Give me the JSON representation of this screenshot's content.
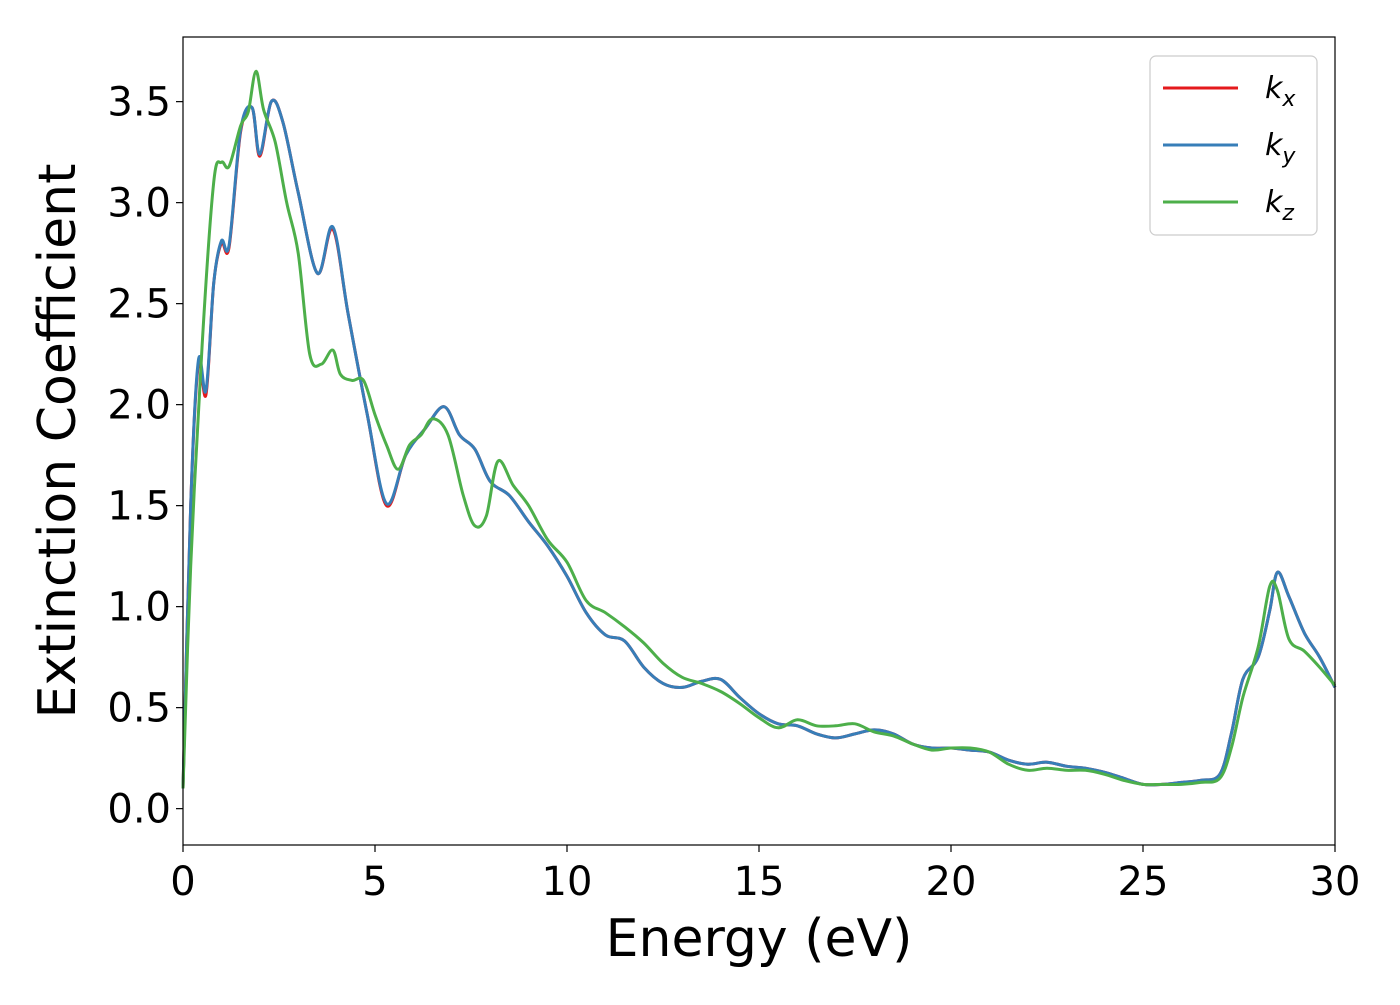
{
  "chart_data": {
    "type": "line",
    "xlabel": "Energy (eV)",
    "ylabel": "Extinction Coefficient",
    "xlim": [
      0,
      30
    ],
    "ylim": [
      -0.18,
      3.82
    ],
    "xticks": [
      0,
      5,
      10,
      15,
      20,
      25,
      30
    ],
    "yticks": [
      "0.0",
      "0.5",
      "1.0",
      "1.5",
      "2.0",
      "2.5",
      "3.0",
      "3.5"
    ],
    "grid": false,
    "legend_position": "top-right",
    "legend": [
      {
        "label": "k",
        "sub": "x",
        "color": "#e41a1c"
      },
      {
        "label": "k",
        "sub": "y",
        "color": "#377eb8"
      },
      {
        "label": "k",
        "sub": "z",
        "color": "#4daf4a"
      }
    ],
    "series": [
      {
        "name": "kx",
        "color": "#e41a1c",
        "x": [
          0,
          0.2,
          0.4,
          0.6,
          0.8,
          1.0,
          1.2,
          1.5,
          1.8,
          2.0,
          2.3,
          2.6,
          3.0,
          3.5,
          3.9,
          4.3,
          4.8,
          5.3,
          5.8,
          6.3,
          6.8,
          7.2,
          7.6,
          8.0,
          8.5,
          9.0,
          9.5,
          10.0,
          10.5,
          11.0,
          11.5,
          12.0,
          12.5,
          13.0,
          13.5,
          14.0,
          14.5,
          15.0,
          15.5,
          16.0,
          16.5,
          17.0,
          17.5,
          18.0,
          18.5,
          19.0,
          19.5,
          20.0,
          20.5,
          21.0,
          21.5,
          22.0,
          22.5,
          23.0,
          23.5,
          24.0,
          24.5,
          25.0,
          25.5,
          26.0,
          26.5,
          27.0,
          27.3,
          27.6,
          28.0,
          28.3,
          28.5,
          28.8,
          29.2,
          29.6,
          30.0
        ],
        "y": [
          0.1,
          1.5,
          2.2,
          2.05,
          2.6,
          2.8,
          2.78,
          3.35,
          3.47,
          3.23,
          3.5,
          3.4,
          3.05,
          2.65,
          2.87,
          2.45,
          1.95,
          1.5,
          1.75,
          1.88,
          1.99,
          1.85,
          1.78,
          1.62,
          1.55,
          1.42,
          1.3,
          1.15,
          0.97,
          0.86,
          0.83,
          0.7,
          0.62,
          0.6,
          0.63,
          0.64,
          0.55,
          0.47,
          0.42,
          0.41,
          0.37,
          0.35,
          0.37,
          0.39,
          0.37,
          0.32,
          0.3,
          0.3,
          0.29,
          0.28,
          0.24,
          0.22,
          0.23,
          0.21,
          0.2,
          0.18,
          0.15,
          0.12,
          0.12,
          0.13,
          0.14,
          0.17,
          0.37,
          0.64,
          0.75,
          0.98,
          1.17,
          1.05,
          0.87,
          0.75,
          0.6
        ]
      },
      {
        "name": "ky",
        "color": "#377eb8",
        "x": [
          0,
          0.2,
          0.4,
          0.6,
          0.8,
          1.0,
          1.2,
          1.5,
          1.8,
          2.0,
          2.3,
          2.6,
          3.0,
          3.5,
          3.9,
          4.3,
          4.8,
          5.3,
          5.8,
          6.3,
          6.8,
          7.2,
          7.6,
          8.0,
          8.5,
          9.0,
          9.5,
          10.0,
          10.5,
          11.0,
          11.5,
          12.0,
          12.5,
          13.0,
          13.5,
          14.0,
          14.5,
          15.0,
          15.5,
          16.0,
          16.5,
          17.0,
          17.5,
          18.0,
          18.5,
          19.0,
          19.5,
          20.0,
          20.5,
          21.0,
          21.5,
          22.0,
          22.5,
          23.0,
          23.5,
          24.0,
          24.5,
          25.0,
          25.5,
          26.0,
          26.5,
          27.0,
          27.3,
          27.6,
          28.0,
          28.3,
          28.5,
          28.8,
          29.2,
          29.6,
          30.0
        ],
        "y": [
          0.1,
          1.5,
          2.22,
          2.07,
          2.6,
          2.81,
          2.79,
          3.36,
          3.47,
          3.24,
          3.5,
          3.4,
          3.05,
          2.65,
          2.88,
          2.45,
          1.95,
          1.51,
          1.75,
          1.88,
          1.99,
          1.85,
          1.78,
          1.62,
          1.55,
          1.42,
          1.3,
          1.15,
          0.97,
          0.86,
          0.83,
          0.7,
          0.62,
          0.6,
          0.63,
          0.64,
          0.55,
          0.47,
          0.42,
          0.41,
          0.37,
          0.35,
          0.37,
          0.39,
          0.37,
          0.32,
          0.3,
          0.3,
          0.29,
          0.28,
          0.24,
          0.22,
          0.23,
          0.21,
          0.2,
          0.18,
          0.15,
          0.12,
          0.12,
          0.13,
          0.14,
          0.17,
          0.37,
          0.64,
          0.75,
          0.98,
          1.17,
          1.05,
          0.87,
          0.75,
          0.6
        ]
      },
      {
        "name": "kz",
        "color": "#4daf4a",
        "x": [
          0,
          0.2,
          0.5,
          0.8,
          1.0,
          1.2,
          1.5,
          1.7,
          1.9,
          2.1,
          2.4,
          2.7,
          3.0,
          3.3,
          3.6,
          3.9,
          4.1,
          4.4,
          4.7,
          5.0,
          5.3,
          5.6,
          5.9,
          6.2,
          6.5,
          6.9,
          7.3,
          7.6,
          7.9,
          8.2,
          8.6,
          9.0,
          9.5,
          10.0,
          10.5,
          11.0,
          11.5,
          12.0,
          12.5,
          13.0,
          13.5,
          14.0,
          14.5,
          15.0,
          15.5,
          16.0,
          16.5,
          17.0,
          17.5,
          18.0,
          18.5,
          19.0,
          19.5,
          20.0,
          20.5,
          21.0,
          21.5,
          22.0,
          22.5,
          23.0,
          23.5,
          24.0,
          24.5,
          25.0,
          25.5,
          26.0,
          26.5,
          27.0,
          27.3,
          27.6,
          28.0,
          28.3,
          28.5,
          28.8,
          29.2,
          29.6,
          30.0
        ],
        "y": [
          0.1,
          1.2,
          2.3,
          3.1,
          3.2,
          3.18,
          3.38,
          3.45,
          3.65,
          3.46,
          3.3,
          3.0,
          2.75,
          2.25,
          2.2,
          2.27,
          2.15,
          2.12,
          2.12,
          1.95,
          1.8,
          1.68,
          1.8,
          1.85,
          1.93,
          1.85,
          1.55,
          1.4,
          1.45,
          1.72,
          1.6,
          1.5,
          1.33,
          1.22,
          1.03,
          0.97,
          0.9,
          0.82,
          0.72,
          0.65,
          0.62,
          0.58,
          0.52,
          0.45,
          0.4,
          0.44,
          0.41,
          0.41,
          0.42,
          0.38,
          0.36,
          0.32,
          0.29,
          0.3,
          0.3,
          0.28,
          0.22,
          0.19,
          0.2,
          0.19,
          0.19,
          0.17,
          0.14,
          0.12,
          0.12,
          0.12,
          0.13,
          0.15,
          0.3,
          0.55,
          0.8,
          1.1,
          1.08,
          0.84,
          0.78,
          0.7,
          0.61
        ]
      }
    ]
  }
}
